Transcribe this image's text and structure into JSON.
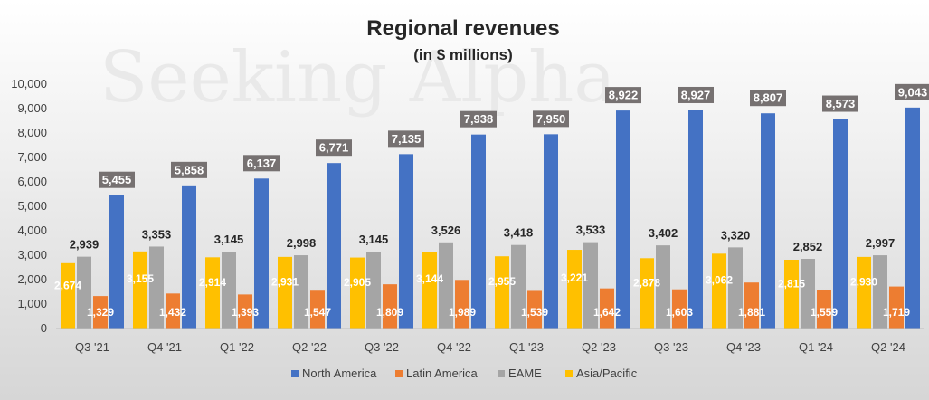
{
  "chart_data": {
    "type": "bar",
    "title": "Regional revenues",
    "subtitle": "(in $ millions)",
    "watermark": "Seeking Alpha",
    "xlabel": "",
    "ylabel": "",
    "ylim": [
      0,
      10000
    ],
    "yticks": [
      0,
      1000,
      2000,
      3000,
      4000,
      5000,
      6000,
      7000,
      8000,
      9000,
      10000
    ],
    "ytick_labels": [
      "0",
      "1,000",
      "2,000",
      "3,000",
      "4,000",
      "5,000",
      "6,000",
      "7,000",
      "8,000",
      "9,000",
      "10,000"
    ],
    "legend_position": "bottom",
    "grid": false,
    "categories": [
      "Q3 '21",
      "Q4 '21",
      "Q1 '22",
      "Q2 '22",
      "Q3 '22",
      "Q4 '22",
      "Q1 '23",
      "Q2 '23",
      "Q3 '23",
      "Q4 '23",
      "Q1 '24",
      "Q2 '24"
    ],
    "series": [
      {
        "name": "Asia/Pacific",
        "color": "#ffc000",
        "values": [
          2674,
          3155,
          2914,
          2931,
          2905,
          3144,
          2955,
          3221,
          2878,
          3062,
          2815,
          2930
        ],
        "labels": [
          "2,674",
          "3,155",
          "2,914",
          "2,931",
          "2,905",
          "3,144",
          "2,955",
          "3,221",
          "2,878",
          "3,062",
          "2,815",
          "2,930"
        ]
      },
      {
        "name": "EAME",
        "color": "#a5a5a5",
        "values": [
          2939,
          3353,
          3145,
          2998,
          3145,
          3526,
          3418,
          3533,
          3402,
          3320,
          2852,
          2997
        ],
        "labels": [
          "2,939",
          "3,353",
          "3,145",
          "2,998",
          "3,145",
          "3,526",
          "3,418",
          "3,533",
          "3,402",
          "3,320",
          "2,852",
          "2,997"
        ]
      },
      {
        "name": "Latin America",
        "color": "#ed7d31",
        "values": [
          1329,
          1432,
          1393,
          1547,
          1809,
          1989,
          1539,
          1642,
          1603,
          1881,
          1559,
          1719
        ],
        "labels": [
          "1,329",
          "1,432",
          "1,393",
          "1,547",
          "1,809",
          "1,989",
          "1,539",
          "1,642",
          "1,603",
          "1,881",
          "1,559",
          "1,719"
        ]
      },
      {
        "name": "North America",
        "color": "#4472c4",
        "values": [
          5455,
          5858,
          6137,
          6771,
          7135,
          7938,
          7950,
          8922,
          8927,
          8807,
          8573,
          9043
        ],
        "labels": [
          "5,455",
          "5,858",
          "6,137",
          "6,771",
          "7,135",
          "7,938",
          "7,950",
          "8,922",
          "8,927",
          "8,807",
          "8,573",
          "9,043"
        ]
      }
    ],
    "legend": [
      "North America",
      "Latin America",
      "EAME",
      "Asia/Pacific"
    ]
  }
}
